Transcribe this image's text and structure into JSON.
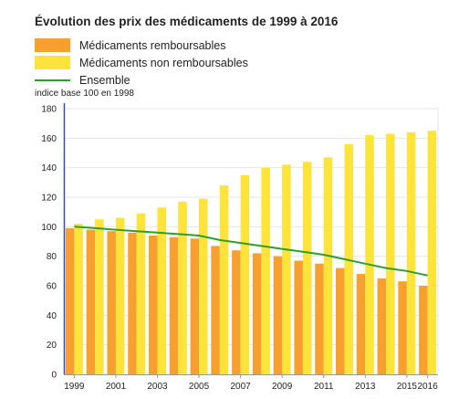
{
  "chart_data": {
    "type": "bar",
    "title": "Évolution des prix des médicaments de 1999 à 2016",
    "ylabel": "indice base 100 en 1998",
    "ylim": [
      0,
      180
    ],
    "yticks": [
      0,
      20,
      40,
      60,
      80,
      100,
      120,
      140,
      160,
      180
    ],
    "categories": [
      "1999",
      "2000",
      "2001",
      "2002",
      "2003",
      "2004",
      "2005",
      "2006",
      "2007",
      "2008",
      "2009",
      "2010",
      "2011",
      "2012",
      "2013",
      "2014",
      "2015",
      "2016"
    ],
    "x_tick_labels": [
      "1999",
      "2001",
      "2003",
      "2005",
      "2007",
      "2009",
      "2011",
      "2013",
      "2015",
      "2016"
    ],
    "series": [
      {
        "name": "Médicaments remboursables",
        "kind": "bar",
        "color": "#f7a030",
        "values": [
          99,
          98,
          97,
          96,
          94,
          93,
          92,
          87,
          84,
          82,
          80,
          77,
          75,
          72,
          68,
          65,
          63,
          60
        ]
      },
      {
        "name": "Médicaments non remboursables",
        "kind": "bar",
        "color": "#fde33a",
        "values": [
          102,
          105,
          106,
          109,
          113,
          117,
          119,
          128,
          135,
          140,
          142,
          144,
          147,
          156,
          162,
          163,
          164,
          165
        ]
      },
      {
        "name": "Ensemble",
        "kind": "line",
        "color": "#2e9e2e",
        "values": [
          100,
          99,
          98,
          97,
          96,
          95,
          94,
          91,
          89,
          87,
          85,
          83,
          81,
          78,
          75,
          72,
          70,
          67
        ]
      }
    ],
    "grid": true,
    "legend": "top-left"
  }
}
